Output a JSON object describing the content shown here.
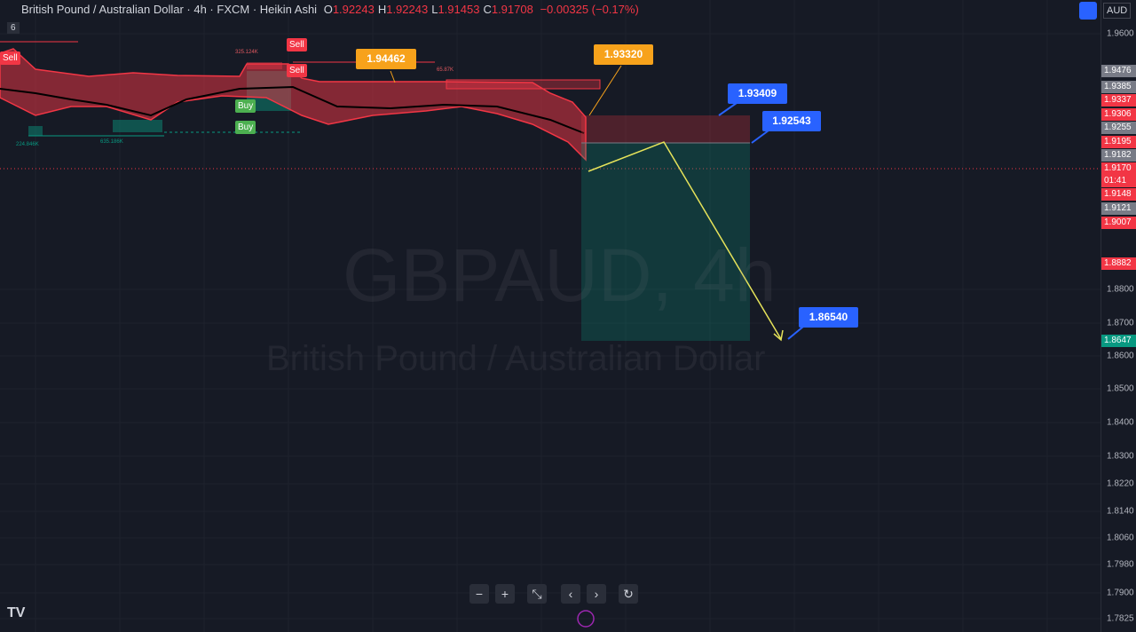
{
  "header": {
    "symbol": "British Pound / Australian Dollar · 4h · FXCM · Heikin Ashi",
    "ohlc": [
      {
        "key": "O",
        "value": "1.92243"
      },
      {
        "key": "H",
        "value": "1.92243"
      },
      {
        "key": "L",
        "value": "1.91453"
      },
      {
        "key": "C",
        "value": "1.91708"
      }
    ],
    "change": "−0.00325 (−0.17%)",
    "indicator_count": "6",
    "currency": "AUD"
  },
  "price_axis": [
    "1.9600",
    "1.8800",
    "1.8700",
    "1.8600",
    "1.8500",
    "1.8400",
    "1.8300",
    "1.8220",
    "1.8140",
    "1.8060",
    "1.7980",
    "1.7900",
    "1.7825"
  ],
  "price_badges": [
    {
      "text": "1.9476",
      "color": "#787b86"
    },
    {
      "text": "1.9385",
      "color": "#787b86"
    },
    {
      "text": "1.9337",
      "color": "#f23645"
    },
    {
      "text": "1.9306",
      "color": "#f23645"
    },
    {
      "text": "1.9255",
      "color": "#787b86"
    },
    {
      "text": "1.9195",
      "color": "#f23645"
    },
    {
      "text": "1.9182",
      "color": "#787b86"
    },
    {
      "text": "1.9170",
      "color": "#f23645"
    },
    {
      "text": "01:41",
      "color": "#f23645"
    },
    {
      "text": "1.9148",
      "color": "#f23645"
    },
    {
      "text": "1.9121",
      "color": "#787b86"
    },
    {
      "text": "1.9007",
      "color": "#f23645"
    },
    {
      "text": "1.8882",
      "color": "#f23645"
    },
    {
      "text": "1.8647",
      "color": "#089981"
    }
  ],
  "callouts": [
    {
      "text": "1.94462",
      "color": "#f7a21b"
    },
    {
      "text": "1.93320",
      "color": "#f7a21b"
    },
    {
      "text": "1.93409",
      "color": "#2962ff"
    },
    {
      "text": "1.92543",
      "color": "#2962ff"
    },
    {
      "text": "1.86540",
      "color": "#2962ff"
    }
  ],
  "signals": [
    {
      "text": "Sell"
    },
    {
      "text": "Sell"
    },
    {
      "text": "Sell"
    },
    {
      "text": "Buy"
    },
    {
      "text": "Buy"
    }
  ],
  "volumes": [
    "325.124K",
    "65.87K",
    "224.846K",
    "635.186K"
  ],
  "watermark": {
    "ticker": "GBPAUD, 4h",
    "name": "British Pound / Australian Dollar"
  }
}
